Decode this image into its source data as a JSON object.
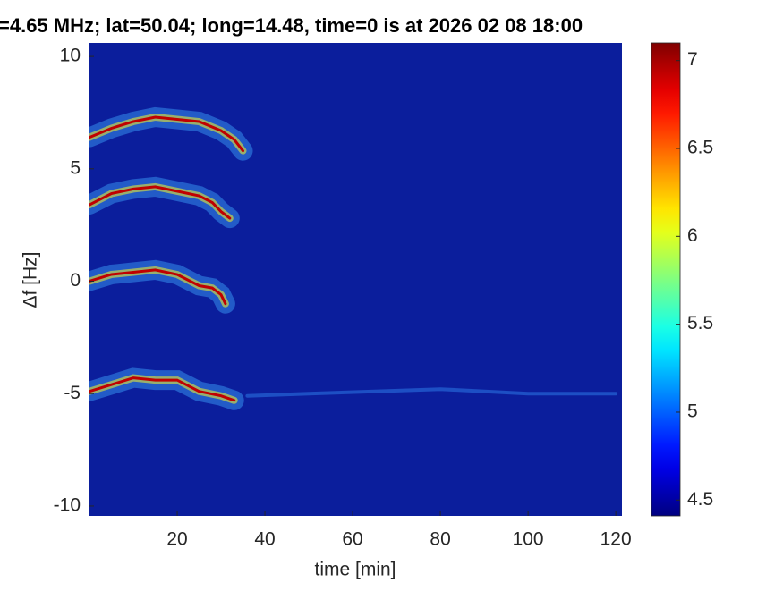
{
  "chart_data": {
    "type": "spectrogram",
    "title": "=4.65 MHz;  lat=50.04; long=14.48, time=0 is at 2026 02 08 18:00",
    "xlabel": "time [min]",
    "ylabel": "Δf [Hz]",
    "xlim": [
      0,
      121.4
    ],
    "xticks": [
      20,
      40,
      60,
      80,
      100,
      120
    ],
    "ylim": [
      -10.44,
      10.6
    ],
    "yticks": [
      -10,
      -5,
      0,
      5,
      10
    ],
    "background": "#0b1e9c",
    "colormap": "jet",
    "clim": [
      4.41,
      7.1
    ],
    "cticks": [
      4.5,
      5,
      5.5,
      6,
      6.5,
      7
    ],
    "series": [
      {
        "color": "#c00000",
        "x": [
          0,
          5,
          10,
          15,
          20,
          25,
          30,
          33,
          35
        ],
        "values": [
          6.4,
          6.8,
          7.1,
          7.3,
          7.2,
          7.1,
          6.7,
          6.3,
          5.8
        ]
      },
      {
        "color": "#c00000",
        "x": [
          0,
          5,
          10,
          15,
          20,
          25,
          28,
          30,
          32
        ],
        "values": [
          3.4,
          3.9,
          4.1,
          4.2,
          4.0,
          3.8,
          3.5,
          3.1,
          2.8
        ]
      },
      {
        "color": "#c00000",
        "x": [
          0,
          5,
          10,
          15,
          20,
          25,
          28,
          30,
          31
        ],
        "values": [
          0,
          0.3,
          0.4,
          0.5,
          0.3,
          -0.2,
          -0.3,
          -0.6,
          -1.0
        ]
      },
      {
        "color": "#c00000",
        "x": [
          0,
          5,
          10,
          15,
          20,
          25,
          30,
          33
        ],
        "values": [
          -4.9,
          -4.6,
          -4.3,
          -4.4,
          -4.4,
          -4.9,
          -5.1,
          -5.3
        ]
      },
      {
        "color": "#2a6fe0",
        "x": [
          36,
          50,
          65,
          80,
          100,
          120
        ],
        "values": [
          -5.1,
          -5.0,
          -4.9,
          -4.8,
          -5.0,
          -5.0
        ]
      }
    ]
  }
}
